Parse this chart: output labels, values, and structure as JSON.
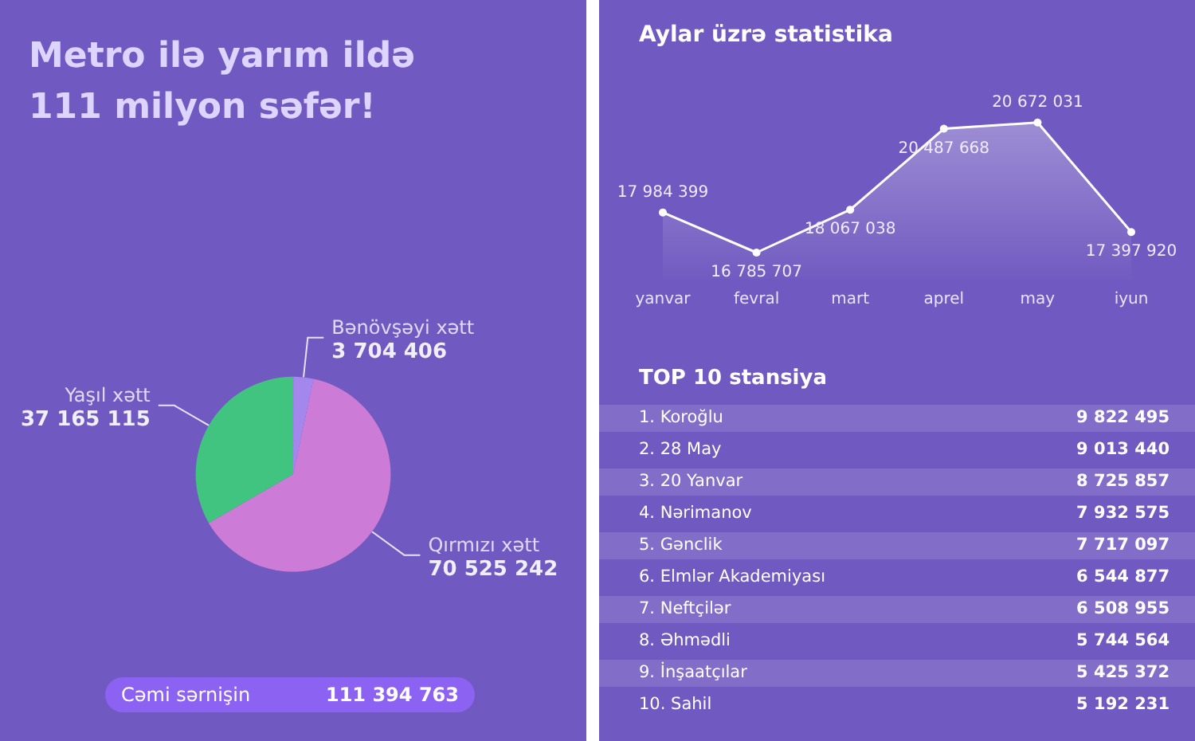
{
  "chart_data": [
    {
      "type": "pie",
      "title": "Metro ilə yarım ildə 111 milyon səfər!",
      "categories": [
        "Yaşıl xətt",
        "Bənövşəyi xətt",
        "Qırmızı xətt"
      ],
      "values": [
        37165115,
        3704406,
        70525242
      ],
      "colors": [
        "#3ccf78",
        "#a98cf2",
        "#d67fd8"
      ],
      "data_labels": true,
      "annotations": [
        "Cəmi sərnişin",
        "111 394 763"
      ],
      "legend": false
    },
    {
      "type": "area",
      "title": "Aylar üzrə statistika",
      "categories": [
        "yanvar",
        "fevral",
        "mart",
        "aprel",
        "may",
        "iyun"
      ],
      "series": [
        {
          "color": "#ffffff",
          "values": [
            17984399,
            16785707,
            18067038,
            20487668,
            20672031,
            17397920
          ]
        }
      ],
      "data_labels": true,
      "marker": "circle",
      "legend": false
    },
    {
      "type": "other",
      "title": "TOP 10 stansiya",
      "categories": [
        "1. Koroğlu",
        "2. 28 May",
        "3. 20 Yanvar",
        "4. Nərimanov",
        "5. Gənclik",
        "6. Elmlər Akademiyası",
        "7. Neftçilər",
        "8. Əhmədli",
        "9. İnşaatçılar",
        "10. Sahil"
      ],
      "values": [
        9822495,
        9013440,
        8725857,
        7932575,
        7717097,
        6544877,
        6508955,
        5744564,
        5425372,
        5192231
      ],
      "data_labels": true
    }
  ]
}
